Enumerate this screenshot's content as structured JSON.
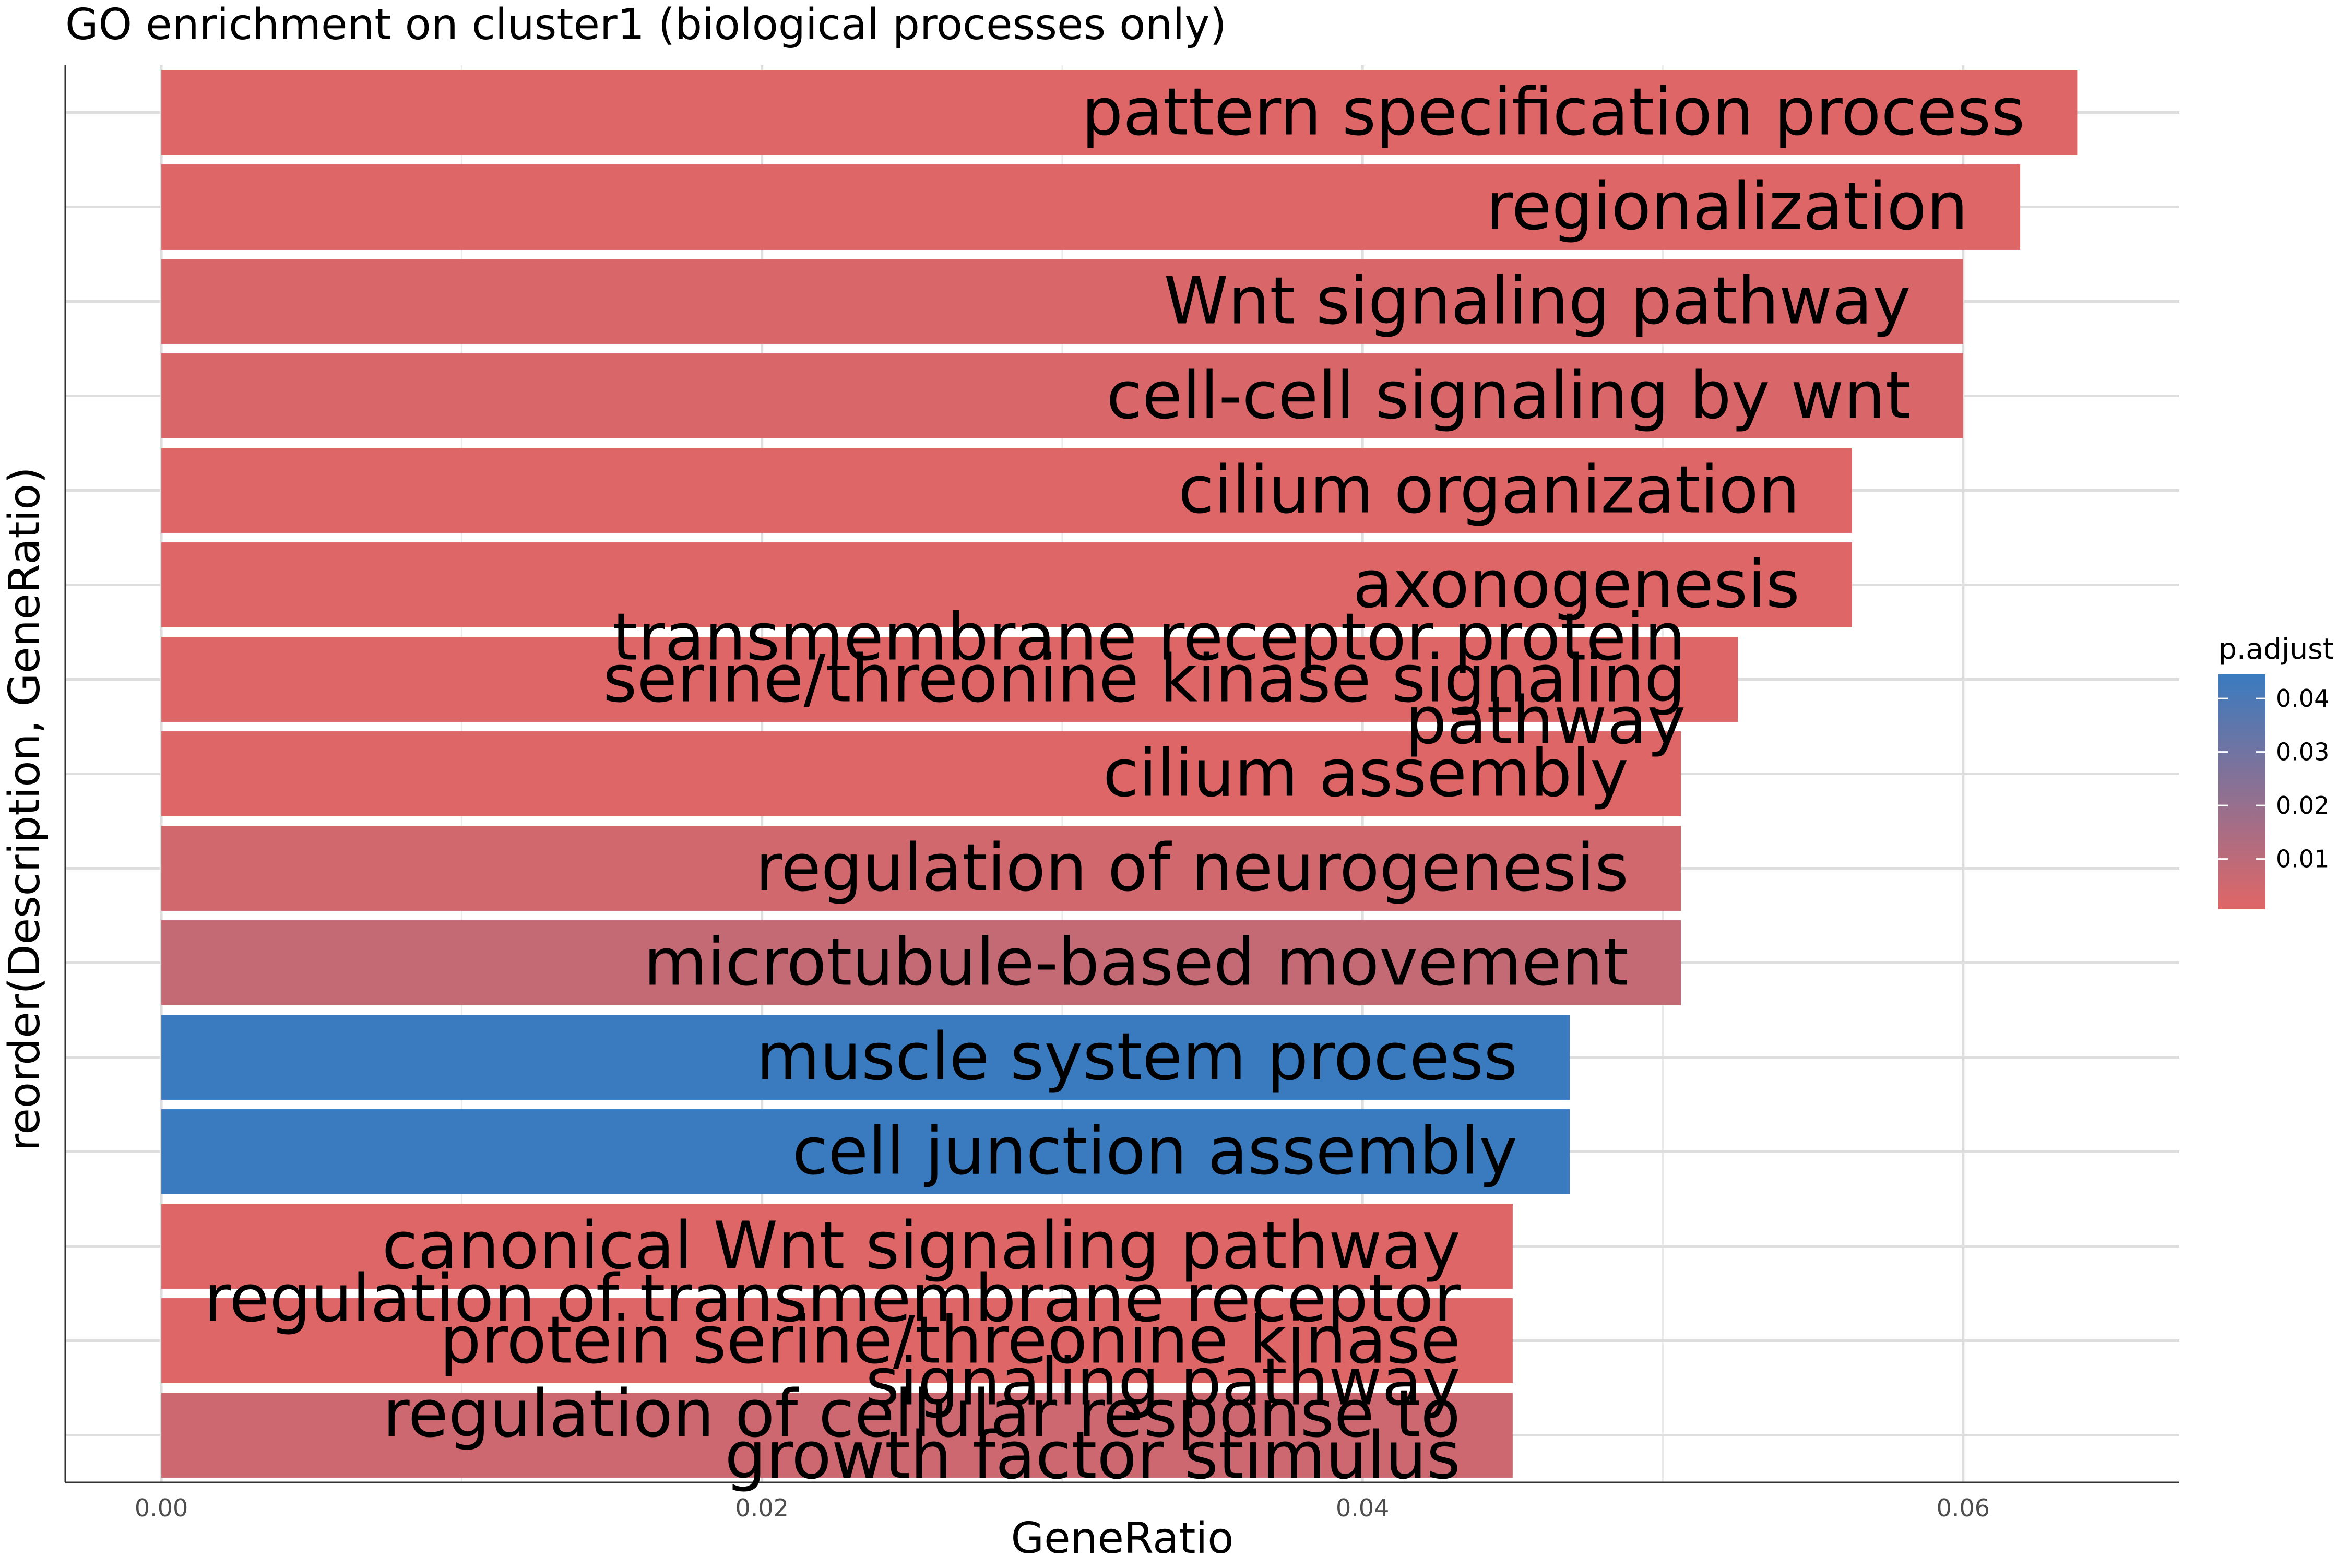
{
  "chart_data": {
    "type": "bar",
    "orientation": "horizontal",
    "title": "GO enrichment on cluster1 (biological processes only)",
    "xlabel": "GeneRatio",
    "ylabel": "reorder(Description, GeneRatio)",
    "xlim": [
      -0.0032,
      0.0672
    ],
    "xticks": [
      "0.00",
      "0.02",
      "0.04",
      "0.06"
    ],
    "x_tick_values": [
      0,
      0.02,
      0.04,
      0.06
    ],
    "grid": true,
    "legend": {
      "title": "p.adjust",
      "position": "right",
      "ticks": [
        "0.04",
        "0.03",
        "0.02",
        "0.01"
      ],
      "tick_values": [
        0.04,
        0.03,
        0.02,
        0.01
      ],
      "range": [
        0.0006,
        0.0445
      ],
      "low_color": "#e06666",
      "high_color": "#3a7bbf"
    },
    "bars": [
      {
        "label": "pattern specification process",
        "value": 0.0638,
        "p_adjust": 0.0012
      },
      {
        "label": "regionalization",
        "value": 0.0619,
        "p_adjust": 0.0012
      },
      {
        "label": "Wnt signaling pathway",
        "value": 0.06,
        "p_adjust": 0.0025
      },
      {
        "label": "cell-cell signaling by wnt",
        "value": 0.06,
        "p_adjust": 0.0025
      },
      {
        "label": "cilium organization",
        "value": 0.0563,
        "p_adjust": 0.0012
      },
      {
        "label": "axonogenesis",
        "value": 0.0563,
        "p_adjust": 0.0012
      },
      {
        "label": "transmembrane receptor protein serine/threonine kinase signaling pathway",
        "value": 0.0525,
        "p_adjust": 0.0012
      },
      {
        "label": "cilium assembly",
        "value": 0.0506,
        "p_adjust": 0.0012
      },
      {
        "label": "regulation of neurogenesis",
        "value": 0.0506,
        "p_adjust": 0.0045
      },
      {
        "label": "microtubule-based movement",
        "value": 0.0506,
        "p_adjust": 0.008
      },
      {
        "label": "muscle system process",
        "value": 0.0469,
        "p_adjust": 0.0445
      },
      {
        "label": "cell junction assembly",
        "value": 0.0469,
        "p_adjust": 0.0445
      },
      {
        "label": "canonical Wnt signaling pathway",
        "value": 0.045,
        "p_adjust": 0.0012
      },
      {
        "label": "regulation of transmembrane receptor protein serine/threonine kinase signaling pathway",
        "value": 0.045,
        "p_adjust": 0.0012
      },
      {
        "label": "regulation of cellular response to growth factor stimulus",
        "value": 0.045,
        "p_adjust": 0.0055
      }
    ],
    "bar_label_lines": [
      [
        "pattern specification process"
      ],
      [
        "regionalization"
      ],
      [
        "Wnt signaling pathway"
      ],
      [
        "cell-cell signaling by wnt"
      ],
      [
        "cilium organization"
      ],
      [
        "axonogenesis"
      ],
      [
        "transmembrane receptor protein",
        "serine/threonine kinase signaling",
        "pathway"
      ],
      [
        "cilium assembly"
      ],
      [
        "regulation of neurogenesis"
      ],
      [
        "microtubule-based movement"
      ],
      [
        "muscle system process"
      ],
      [
        "cell junction assembly"
      ],
      [
        "canonical Wnt signaling pathway"
      ],
      [
        "regulation of transmembrane receptor",
        "protein serine/threonine kinase",
        "signaling pathway"
      ],
      [
        "regulation of cellular response to",
        "growth factor stimulus"
      ]
    ]
  }
}
